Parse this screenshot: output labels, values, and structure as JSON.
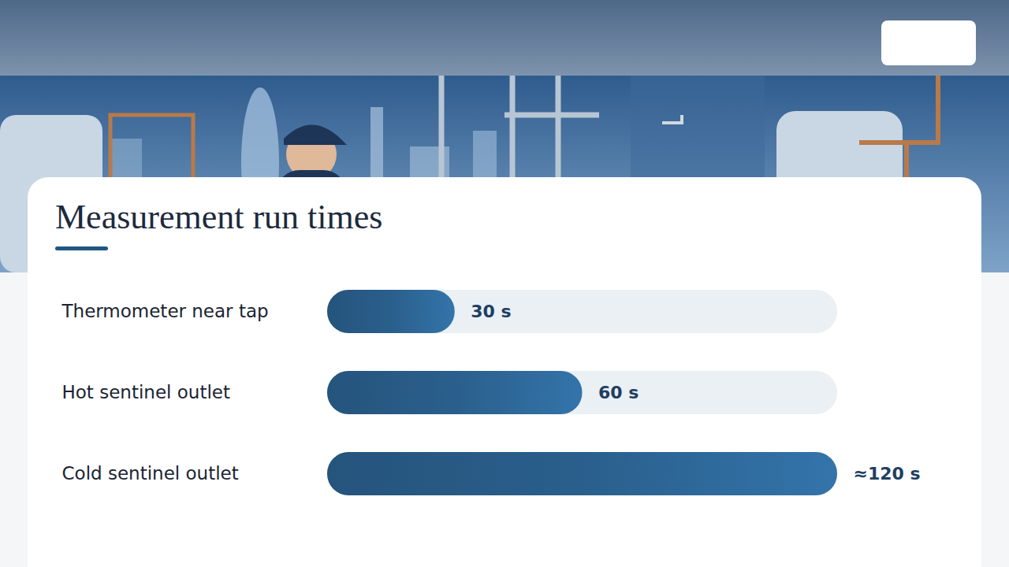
{
  "chart_data": {
    "type": "bar",
    "title": "Measurement run times",
    "orientation": "horizontal",
    "categories": [
      "Thermometer near tap",
      "Hot sentinel outlet",
      "Cold sentinel outlet"
    ],
    "values": [
      30,
      60,
      120
    ],
    "value_labels": [
      "30 s",
      "60 s",
      "≈120 s"
    ],
    "data_labels": true,
    "tick_labels": "y",
    "xlim": [
      0,
      120
    ],
    "color": "#2a5f8c"
  }
}
